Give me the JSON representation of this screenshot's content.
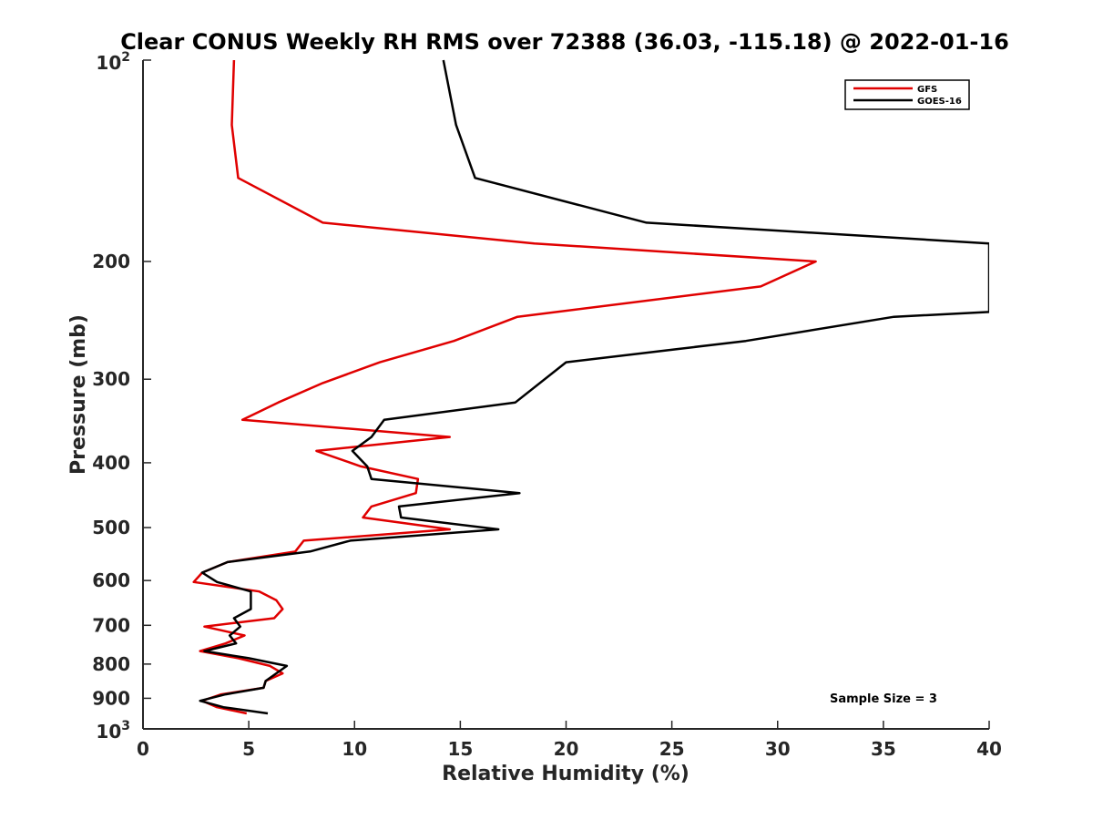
{
  "chart_data": {
    "type": "line",
    "title": "Clear CONUS Weekly RH RMS over 72388 (36.03, -115.18) @ 2022-01-16",
    "xlabel": "Relative Humidity (%)",
    "ylabel": "Pressure (mb)",
    "xlim": [
      0,
      40
    ],
    "ylim": [
      100,
      1000
    ],
    "y_scale": "log",
    "y_reversed": true,
    "x_ticks": [
      0,
      5,
      10,
      15,
      20,
      25,
      30,
      35,
      40
    ],
    "y_ticks": [
      {
        "value": 100,
        "base": "10",
        "exp": "2"
      },
      {
        "value": 200,
        "label": "200"
      },
      {
        "value": 300,
        "label": "300"
      },
      {
        "value": 400,
        "label": "400"
      },
      {
        "value": 500,
        "label": "500"
      },
      {
        "value": 600,
        "label": "600"
      },
      {
        "value": 700,
        "label": "700"
      },
      {
        "value": 800,
        "label": "800"
      },
      {
        "value": 900,
        "label": "900"
      },
      {
        "value": 1000,
        "base": "10",
        "exp": "3"
      }
    ],
    "grid": false,
    "legend_position": "top-right",
    "annotation": "Sample Size = 3",
    "series": [
      {
        "name": "GFS",
        "color": "#e00000",
        "points": [
          [
            4.3,
            100
          ],
          [
            4.2,
            125
          ],
          [
            4.5,
            150
          ],
          [
            8.5,
            175
          ],
          [
            18.5,
            188
          ],
          [
            31.8,
            200
          ],
          [
            29.2,
            218
          ],
          [
            17.7,
            242
          ],
          [
            14.7,
            263
          ],
          [
            11.2,
            283
          ],
          [
            8.5,
            304
          ],
          [
            6.4,
            325
          ],
          [
            4.7,
            345
          ],
          [
            14.5,
            366
          ],
          [
            8.2,
            384
          ],
          [
            10.3,
            405
          ],
          [
            13.0,
            423
          ],
          [
            12.9,
            444
          ],
          [
            10.8,
            465
          ],
          [
            10.4,
            483
          ],
          [
            14.5,
            503
          ],
          [
            7.6,
            523
          ],
          [
            7.2,
            543
          ],
          [
            4.0,
            563
          ],
          [
            2.8,
            584
          ],
          [
            2.4,
            603
          ],
          [
            5.5,
            623
          ],
          [
            6.3,
            642
          ],
          [
            6.6,
            662
          ],
          [
            6.2,
            683
          ],
          [
            2.9,
            703
          ],
          [
            4.8,
            725
          ],
          [
            3.9,
            745
          ],
          [
            2.7,
            765
          ],
          [
            4.5,
            784
          ],
          [
            6.0,
            805
          ],
          [
            6.6,
            826
          ],
          [
            5.8,
            848
          ],
          [
            5.7,
            868
          ],
          [
            3.7,
            888
          ],
          [
            2.8,
            908
          ],
          [
            3.5,
            928
          ],
          [
            4.9,
            948
          ]
        ]
      },
      {
        "name": "GOES-16",
        "color": "#000000",
        "points": [
          [
            14.2,
            100
          ],
          [
            14.8,
            125
          ],
          [
            15.7,
            150
          ],
          [
            23.8,
            175
          ],
          [
            40.0,
            188
          ],
          [
            40.0,
            238
          ],
          [
            35.5,
            242
          ],
          [
            28.5,
            263
          ],
          [
            20.0,
            283
          ],
          [
            17.6,
            325
          ],
          [
            11.4,
            345
          ],
          [
            10.8,
            366
          ],
          [
            9.9,
            384
          ],
          [
            10.6,
            405
          ],
          [
            10.8,
            423
          ],
          [
            17.8,
            444
          ],
          [
            12.1,
            465
          ],
          [
            12.2,
            483
          ],
          [
            16.8,
            503
          ],
          [
            9.8,
            523
          ],
          [
            7.9,
            543
          ],
          [
            4.0,
            563
          ],
          [
            2.8,
            584
          ],
          [
            3.5,
            603
          ],
          [
            5.1,
            623
          ],
          [
            5.1,
            642
          ],
          [
            5.1,
            662
          ],
          [
            4.3,
            683
          ],
          [
            4.6,
            703
          ],
          [
            4.1,
            725
          ],
          [
            4.4,
            745
          ],
          [
            2.9,
            765
          ],
          [
            5.0,
            784
          ],
          [
            6.8,
            805
          ],
          [
            6.3,
            826
          ],
          [
            5.8,
            848
          ],
          [
            5.7,
            868
          ],
          [
            3.9,
            888
          ],
          [
            2.7,
            908
          ],
          [
            3.8,
            928
          ],
          [
            5.9,
            948
          ]
        ]
      }
    ]
  }
}
